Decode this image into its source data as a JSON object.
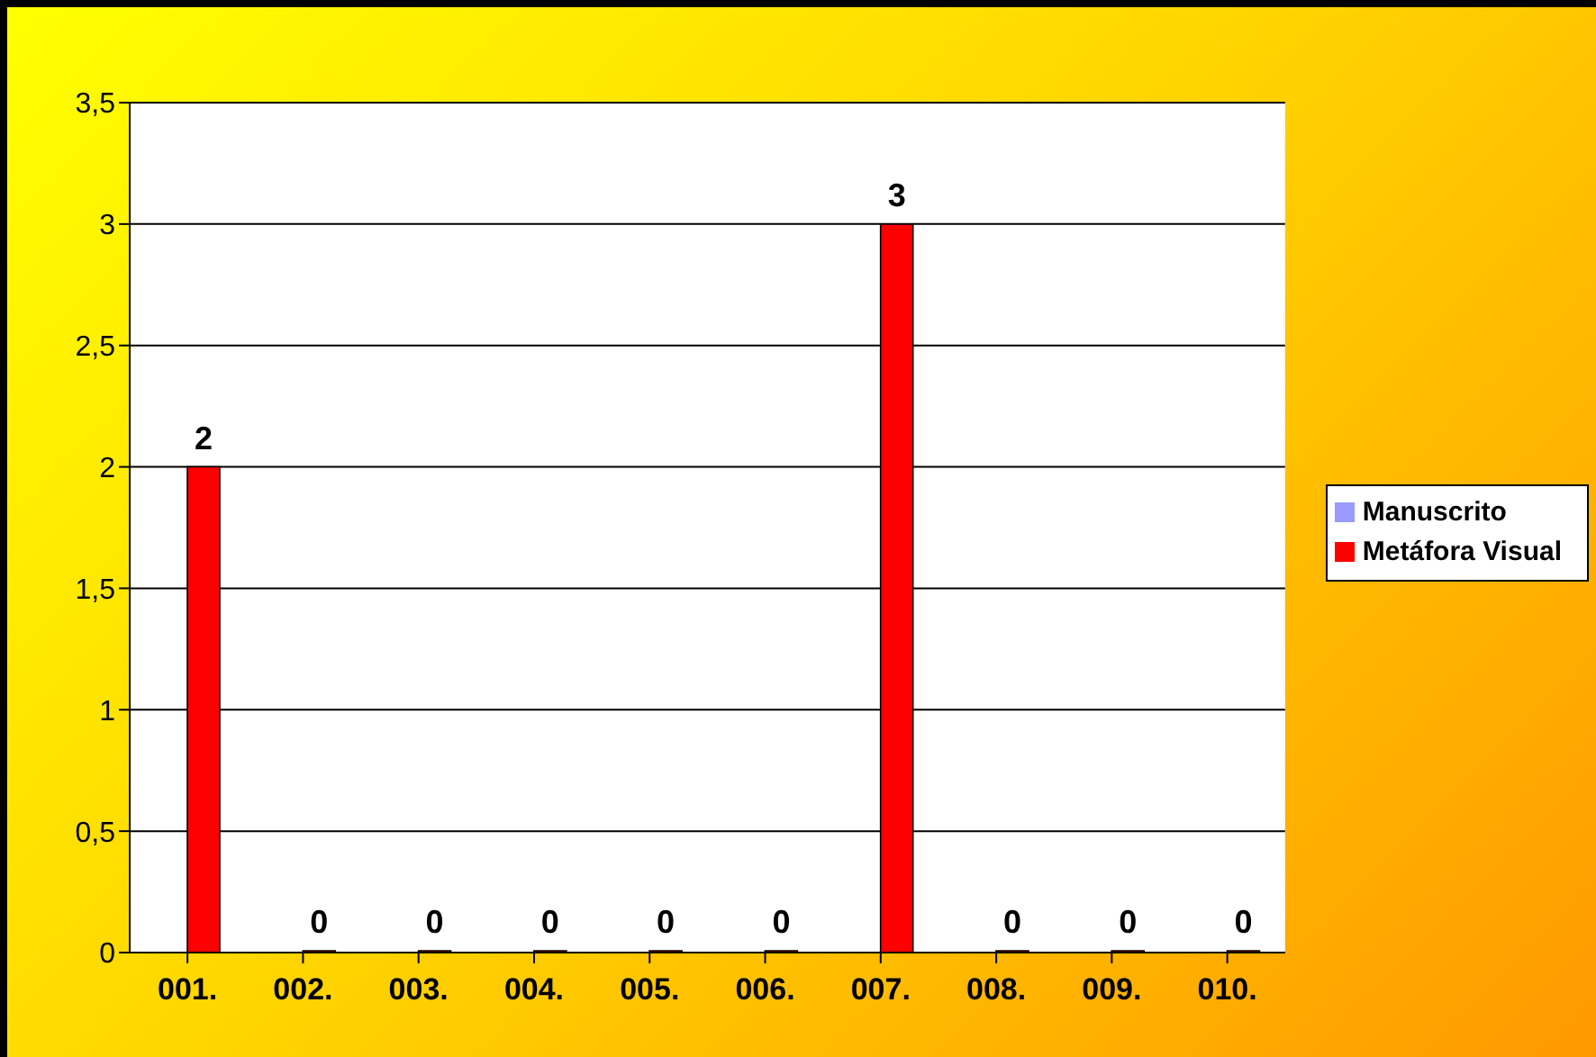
{
  "chart_data": {
    "type": "bar",
    "categories": [
      "001.",
      "002.",
      "003.",
      "004.",
      "005.",
      "006.",
      "007.",
      "008.",
      "009.",
      "010."
    ],
    "series": [
      {
        "name": "Manuscrito",
        "color": "#9999ff",
        "values": [
          null,
          null,
          null,
          null,
          null,
          null,
          null,
          null,
          null,
          null
        ]
      },
      {
        "name": "Metáfora Visual",
        "color": "#ff0000",
        "values": [
          2,
          0,
          0,
          0,
          0,
          0,
          3,
          0,
          0,
          0
        ]
      }
    ],
    "ylim": [
      0,
      3.5
    ],
    "yticks": [
      0,
      {
        "value": 0.5,
        "label": "0,5"
      },
      1,
      {
        "value": 1.5,
        "label": "1,5"
      },
      2,
      {
        "value": 2.5,
        "label": "2,5"
      },
      3,
      {
        "value": 3.5,
        "label": "3,5"
      }
    ],
    "grid": "y",
    "legend": "right",
    "data_labels": true
  }
}
